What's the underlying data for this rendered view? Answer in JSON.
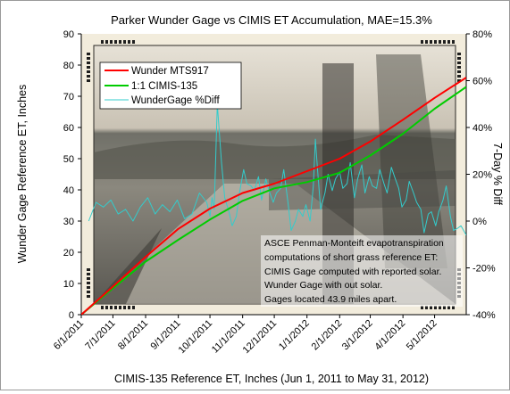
{
  "chart_data": {
    "type": "line",
    "title": "Parker Wunder Gage vs CIMIS  ET Accumulation, MAE=15.3%",
    "xlabel": "CIMIS-135 Reference ET, Inches (Jun 1, 2011 to May 31, 2012)",
    "ylabel": "Wunder Gage Reference ET, Inches",
    "y2label": "7-Day % Diff",
    "ylim": [
      0,
      90
    ],
    "y2lim": [
      -40,
      80
    ],
    "yticks": [
      "0",
      "10",
      "20",
      "30",
      "40",
      "50",
      "60",
      "70",
      "80",
      "90"
    ],
    "y2ticks": [
      "-40%",
      "-20%",
      "0%",
      "20%",
      "40%",
      "60%",
      "80%"
    ],
    "x_date_range": [
      "6/1/2011",
      "5/31/2012"
    ],
    "xticks": [
      "6/1/2011",
      "7/1/2011",
      "8/1/2011",
      "9/1/2011",
      "10/1/2011",
      "11/1/2011",
      "12/1/2011",
      "1/1/2012",
      "2/1/2012",
      "3/1/2012",
      "4/1/2012",
      "5/1/2012"
    ],
    "legend_position": "top-left",
    "grid": false,
    "series": [
      {
        "name": "Wunder MTS917",
        "color": "#ff0000",
        "axis": "left",
        "x": [
          "6/1/2011",
          "7/1/2011",
          "8/1/2011",
          "9/1/2011",
          "10/1/2011",
          "11/1/2011",
          "12/1/2011",
          "1/1/2012",
          "2/1/2012",
          "3/1/2012",
          "4/1/2012",
          "5/1/2012",
          "5/31/2012"
        ],
        "y": [
          0,
          9,
          18.5,
          27.5,
          34,
          39,
          42,
          46,
          50,
          55.5,
          62.5,
          69.5,
          76
        ]
      },
      {
        "name": "1:1 CIMIS-135",
        "color": "#00cc00",
        "axis": "left",
        "x": [
          "6/1/2011",
          "7/1/2011",
          "8/1/2011",
          "9/1/2011",
          "10/1/2011",
          "11/1/2011",
          "12/1/2011",
          "1/1/2012",
          "2/1/2012",
          "3/1/2012",
          "4/1/2012",
          "5/1/2012",
          "5/31/2012"
        ],
        "y": [
          0,
          8.5,
          17,
          24,
          30.5,
          36.5,
          40.5,
          42.5,
          45.5,
          51,
          58,
          66,
          73
        ]
      },
      {
        "name": "WunderGage %Diff",
        "color": "#33cccc",
        "axis": "right",
        "x": [
          "6/8/2011",
          "6/15/2011",
          "6/22/2011",
          "6/29/2011",
          "7/6/2011",
          "7/13/2011",
          "7/20/2011",
          "7/27/2011",
          "8/3/2011",
          "8/10/2011",
          "8/17/2011",
          "8/24/2011",
          "8/31/2011",
          "9/7/2011",
          "9/14/2011",
          "9/21/2011",
          "9/28/2011",
          "10/1/2011",
          "10/3/2011",
          "10/5/2011",
          "10/8/2011",
          "10/12/2011",
          "10/15/2011",
          "10/19/2011",
          "10/22/2011",
          "10/26/2011",
          "10/29/2011",
          "11/2/2011",
          "11/5/2011",
          "11/9/2011",
          "11/12/2011",
          "11/16/2011",
          "11/19/2011",
          "11/23/2011",
          "11/26/2011",
          "11/30/2011",
          "12/3/2011",
          "12/7/2011",
          "12/10/2011",
          "12/14/2011",
          "12/17/2011",
          "12/21/2011",
          "12/24/2011",
          "12/28/2011",
          "12/31/2011",
          "1/4/2012",
          "1/7/2012",
          "1/9/2012",
          "1/11/2012",
          "1/14/2012",
          "1/18/2012",
          "1/21/2012",
          "1/25/2012",
          "1/28/2012",
          "2/1/2012",
          "2/4/2012",
          "2/8/2012",
          "2/11/2012",
          "2/15/2012",
          "2/18/2012",
          "2/22/2012",
          "2/25/2012",
          "2/29/2012",
          "3/3/2012",
          "3/7/2012",
          "3/10/2012",
          "3/14/2012",
          "3/17/2012",
          "3/21/2012",
          "3/24/2012",
          "3/28/2012",
          "3/31/2012",
          "4/4/2012",
          "4/7/2012",
          "4/11/2012",
          "4/14/2012",
          "4/18/2012",
          "4/21/2012",
          "4/25/2012",
          "4/28/2012",
          "5/2/2012",
          "5/5/2012",
          "5/9/2012",
          "5/12/2012",
          "5/16/2012",
          "5/19/2012",
          "5/23/2012",
          "5/26/2012",
          "5/31/2012"
        ],
        "y": [
          0,
          8,
          6,
          9,
          3,
          5,
          0,
          6,
          10,
          3,
          7,
          4,
          9,
          1,
          3,
          12,
          8,
          2,
          10,
          5,
          50,
          25,
          10,
          4,
          -2,
          2,
          12,
          22,
          16,
          15,
          13,
          19,
          9,
          18,
          13,
          8,
          12,
          14,
          22,
          8,
          -4,
          0,
          5,
          2,
          7,
          0,
          15,
          35,
          22,
          5,
          12,
          20,
          13,
          18,
          21,
          14,
          16,
          25,
          10,
          18,
          24,
          12,
          19,
          15,
          14,
          22,
          16,
          12,
          23,
          19,
          14,
          6,
          9,
          17,
          12,
          8,
          5,
          -5,
          3,
          4,
          -2,
          4,
          9,
          15,
          2,
          -4,
          -3,
          -2,
          -6
        ]
      }
    ],
    "annotation": [
      "ASCE Penman-Monteift evapotranspiration",
      "computations of short grass reference ET:",
      "CIMIS Gage computed with reported solar.",
      "Wunder Gage with out solar.",
      "Gages located 43.9 miles apart."
    ]
  }
}
